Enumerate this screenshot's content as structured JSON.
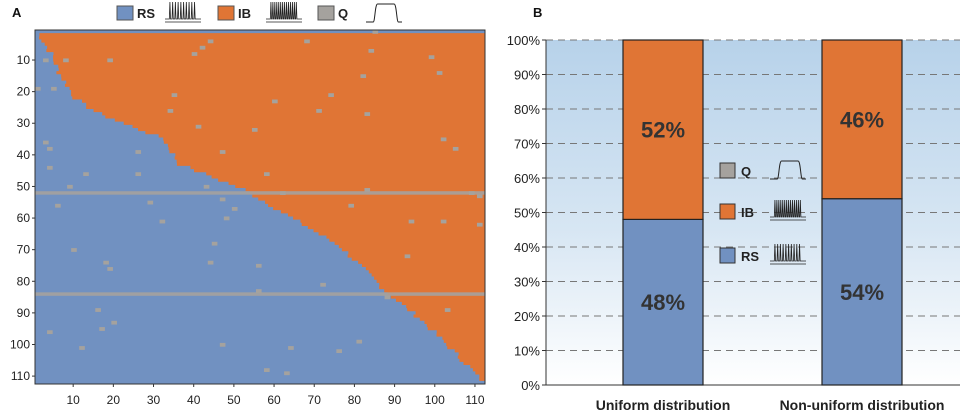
{
  "panels": {
    "a_label": "A",
    "b_label": "B"
  },
  "colors": {
    "rs": "#7191c1",
    "ib": "#e07535",
    "q": "#a5a29e",
    "bg_top": "#b9d3ea",
    "bg_bottom": "#ffffff"
  },
  "legend_a": [
    {
      "key": "rs",
      "label": "RS",
      "icon": "regular-spiking-trace-icon"
    },
    {
      "key": "ib",
      "label": "IB",
      "icon": "intrinsic-bursting-trace-icon"
    },
    {
      "key": "q",
      "label": "Q",
      "icon": "quiescent-step-trace-icon"
    }
  ],
  "legend_b": [
    {
      "key": "q",
      "label": "Q",
      "icon": "quiescent-step-trace-icon"
    },
    {
      "key": "ib",
      "label": "IB",
      "icon": "intrinsic-bursting-trace-icon"
    },
    {
      "key": "rs",
      "label": "RS",
      "icon": "regular-spiking-trace-icon"
    }
  ],
  "chart_data": [
    {
      "type": "heatmap",
      "panel": "A",
      "x_ticks": [
        10,
        20,
        30,
        40,
        50,
        60,
        70,
        80,
        90,
        100,
        110
      ],
      "y_ticks": [
        10,
        20,
        30,
        40,
        50,
        60,
        70,
        80,
        90,
        100,
        110
      ],
      "xlim": [
        1,
        112
      ],
      "ylim": [
        1,
        112
      ],
      "y_inverted": true,
      "categories": [
        "RS",
        "IB",
        "Q"
      ],
      "rs_ib_boundary": [
        [
          1,
          2
        ],
        [
          4,
          8
        ],
        [
          6,
          14
        ],
        [
          8,
          18
        ],
        [
          10,
          22
        ],
        [
          12,
          24
        ],
        [
          16,
          27
        ],
        [
          20,
          29
        ],
        [
          24,
          31
        ],
        [
          28,
          33
        ],
        [
          32,
          35
        ],
        [
          34,
          39
        ],
        [
          36,
          43
        ],
        [
          40,
          45
        ],
        [
          44,
          47
        ],
        [
          48,
          49
        ],
        [
          52,
          51
        ],
        [
          56,
          54
        ],
        [
          60,
          57
        ],
        [
          64,
          60
        ],
        [
          68,
          63
        ],
        [
          72,
          66
        ],
        [
          76,
          69
        ],
        [
          80,
          74
        ],
        [
          84,
          79
        ],
        [
          88,
          84
        ],
        [
          92,
          88
        ],
        [
          96,
          92
        ],
        [
          100,
          97
        ],
        [
          104,
          102
        ],
        [
          108,
          107
        ],
        [
          110,
          110
        ],
        [
          112,
          112
        ]
      ],
      "q_rows": [
        52,
        84
      ],
      "q_note": "scattered single Q cells"
    },
    {
      "type": "bar",
      "panel": "B",
      "stacked": true,
      "categories": [
        "Uniform distribution",
        "Non-uniform distribution"
      ],
      "series": [
        {
          "name": "RS",
          "values": [
            48,
            54
          ],
          "labels": [
            "48%",
            "54%"
          ]
        },
        {
          "name": "IB",
          "values": [
            52,
            46
          ],
          "labels": [
            "52%",
            "46%"
          ]
        }
      ],
      "ylim": [
        0,
        100
      ],
      "y_ticks": [
        "0%",
        "10%",
        "20%",
        "30%",
        "40%",
        "50%",
        "60%",
        "70%",
        "80%",
        "90%",
        "100%"
      ],
      "grid": true,
      "legend": "center"
    }
  ]
}
